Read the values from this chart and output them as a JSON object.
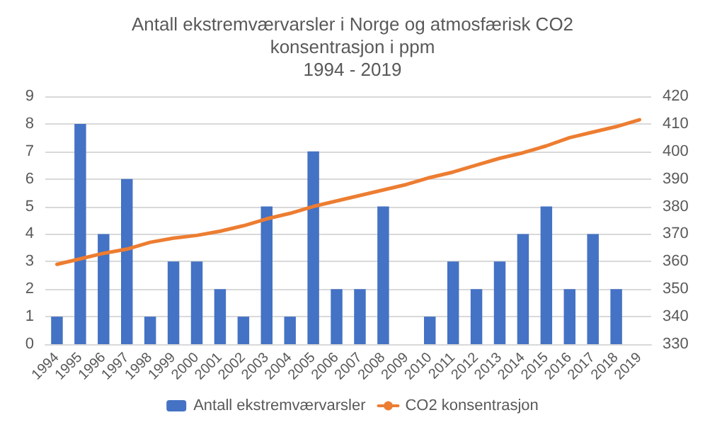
{
  "chart_data": {
    "type": "bar",
    "title": "Antall ekstremværvarsler i Norge og atmosfærisk CO2\nkonsentrasjon i ppm\n1994 - 2019",
    "categories": [
      "1994",
      "1995",
      "1996",
      "1997",
      "1998",
      "1999",
      "2000",
      "2001",
      "2002",
      "2003",
      "2004",
      "2005",
      "2006",
      "2007",
      "2008",
      "2009",
      "2010",
      "2011",
      "2012",
      "2013",
      "2014",
      "2015",
      "2016",
      "2017",
      "2018",
      "2019"
    ],
    "series": [
      {
        "name": "Antall ekstremværvarsler",
        "color": "#4472c4",
        "values": [
          1,
          8,
          4,
          6,
          1,
          3,
          3,
          2,
          1,
          5,
          1,
          7,
          2,
          2,
          5,
          0,
          1,
          3,
          2,
          3,
          4,
          5,
          2,
          4,
          2,
          0
        ]
      },
      {
        "name": "CO2 konsentrasjon",
        "type": "line",
        "axis": "y2",
        "color": "#ed7d31",
        "values": [
          359,
          361,
          363,
          364.5,
          367,
          368.5,
          369.5,
          371,
          373,
          375.5,
          377.5,
          380,
          382,
          384,
          386,
          388,
          390.5,
          392.5,
          395,
          397.5,
          399.5,
          402,
          405,
          407,
          409,
          411.5
        ]
      }
    ],
    "ylim": [
      0,
      9
    ],
    "yticks": [
      0,
      1,
      2,
      3,
      4,
      5,
      6,
      7,
      8,
      9
    ],
    "y2lim": [
      330,
      420
    ],
    "y2ticks": [
      330,
      340,
      350,
      360,
      370,
      380,
      390,
      400,
      410,
      420
    ],
    "grid": "y",
    "legend": "bottom",
    "marker": "none",
    "line_style": "solid"
  }
}
